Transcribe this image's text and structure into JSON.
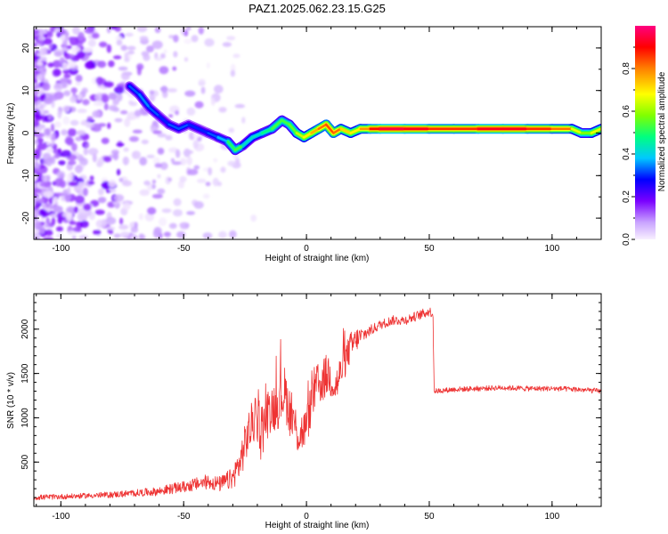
{
  "title": "PAZ1.2025.062.23.15.G25",
  "chart_data": [
    {
      "type": "heatmap",
      "xlabel": "Height of straight line (km)",
      "ylabel": "Frequency (Hz)",
      "xlim": [
        -111,
        120
      ],
      "ylim": [
        -25,
        25
      ],
      "xticks": [
        -100,
        -50,
        0,
        50,
        100
      ],
      "yticks": [
        -20,
        -10,
        0,
        10,
        20
      ],
      "colorbar": {
        "label": "Normalized spectral amplitude",
        "range": [
          0,
          1
        ],
        "ticks": [
          "0.0",
          "0.2",
          "0.4",
          "0.6",
          "0.8"
        ],
        "colormap": [
          "#f8f0ff",
          "#c9a3ff",
          "#7a00ff",
          "#0000ff",
          "#00c8ff",
          "#00ff80",
          "#80ff00",
          "#ffff00",
          "#ff8000",
          "#ff0000",
          "#ff0080"
        ]
      },
      "ridge": {
        "x": [
          -72,
          -68,
          -64,
          -60,
          -56,
          -52,
          -48,
          -44,
          -40,
          -36,
          -32,
          -29,
          -26,
          -22,
          -18,
          -14,
          -10,
          -7,
          -4,
          -1,
          2,
          5,
          8,
          11,
          14,
          18,
          22,
          26,
          30,
          40,
          50,
          60,
          70,
          80,
          90,
          100,
          108,
          112,
          116,
          120
        ],
        "y": [
          11,
          9,
          6,
          4,
          2,
          1,
          2,
          1,
          0,
          -1,
          -2,
          -4,
          -3,
          -1,
          0,
          1,
          3,
          2,
          0,
          -1,
          0,
          1,
          2,
          0,
          1,
          0,
          1,
          1,
          1,
          1,
          1,
          1,
          1,
          1,
          1,
          1,
          1,
          0,
          0,
          1
        ],
        "amplitude": [
          0.3,
          0.35,
          0.35,
          0.3,
          0.3,
          0.35,
          0.3,
          0.3,
          0.3,
          0.35,
          0.4,
          0.6,
          0.45,
          0.4,
          0.45,
          0.5,
          0.55,
          0.5,
          0.6,
          0.65,
          0.7,
          0.75,
          0.8,
          0.8,
          0.75,
          0.65,
          0.7,
          0.8,
          0.9,
          0.9,
          0.85,
          0.8,
          0.85,
          0.9,
          0.85,
          0.8,
          0.75,
          0.55,
          0.6,
          0.7
        ]
      }
    },
    {
      "type": "line",
      "xlabel": "Height of straight line (km)",
      "ylabel": "SNR (10 * v/v)",
      "xlim": [
        -111,
        120
      ],
      "ylim": [
        0,
        2400
      ],
      "xticks": [
        -100,
        -50,
        0,
        50,
        100
      ],
      "yticks": [
        500,
        1000,
        1500,
        2000
      ],
      "color": "#ee3333",
      "series": [
        {
          "x": [
            -111,
            -100,
            -90,
            -80,
            -70,
            -60,
            -55,
            -50,
            -45,
            -40,
            -35,
            -30,
            -27,
            -24,
            -21,
            -18,
            -15,
            -12,
            -9,
            -6,
            -3,
            0,
            3,
            6,
            9,
            12,
            15,
            18,
            21,
            24,
            27,
            30,
            35,
            40,
            45,
            50,
            51.5,
            52,
            60,
            70,
            80,
            90,
            100,
            110,
            120
          ],
          "y": [
            100,
            110,
            120,
            130,
            150,
            170,
            200,
            220,
            250,
            280,
            250,
            320,
            500,
            800,
            1000,
            900,
            1100,
            1150,
            1300,
            1000,
            800,
            900,
            1300,
            1400,
            1500,
            1350,
            1600,
            1800,
            1900,
            1950,
            2000,
            2050,
            2100,
            2100,
            2150,
            2200,
            2180,
            1300,
            1320,
            1330,
            1340,
            1330,
            1330,
            1320,
            1300
          ],
          "noise": [
            60,
            60,
            60,
            70,
            80,
            100,
            120,
            130,
            150,
            170,
            180,
            250,
            400,
            500,
            550,
            600,
            550,
            600,
            600,
            550,
            500,
            450,
            550,
            500,
            500,
            450,
            400,
            350,
            250,
            150,
            120,
            110,
            110,
            110,
            110,
            110,
            110,
            60,
            60,
            60,
            60,
            60,
            60,
            60,
            60
          ]
        }
      ]
    }
  ]
}
